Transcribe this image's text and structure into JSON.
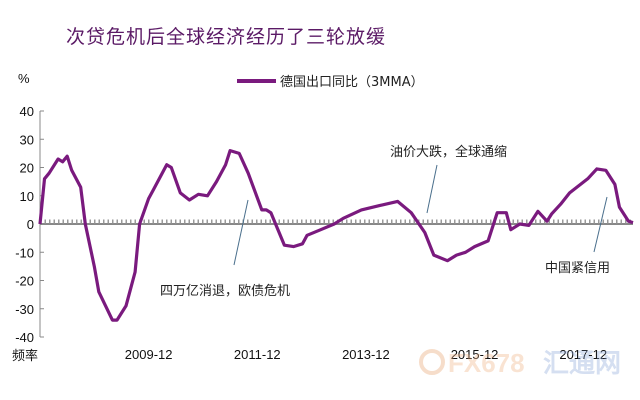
{
  "title": "次贷危机后全球经济经历了三轮放缓",
  "colors": {
    "series": "#7a1a7e",
    "title": "#5b1a66",
    "zero_line": "#888888",
    "annotation_line": "#4a6f8c"
  },
  "watermark": "FX678 汇通网",
  "chart_data": {
    "type": "line",
    "title": "次贷危机后全球经济经历了三轮放缓",
    "ylabel": "%",
    "xlabel": "频率",
    "ylim": [
      -40,
      40
    ],
    "yticks": [
      40,
      30,
      20,
      10,
      0,
      -10,
      -20,
      -30,
      -40
    ],
    "xlim": [
      "2007-12",
      "2018-11"
    ],
    "xticks": [
      "2009-12",
      "2011-12",
      "2013-12",
      "2015-12",
      "2017-12"
    ],
    "legend": {
      "position": "top-center",
      "entries": [
        "德国出口同比（3MMA）"
      ]
    },
    "grid": false,
    "series": [
      {
        "name": "德国出口同比（3MMA）",
        "x": [
          "2007-12",
          "2008-01",
          "2008-02",
          "2008-04",
          "2008-05",
          "2008-06",
          "2008-07",
          "2008-09",
          "2008-10",
          "2008-12",
          "2009-01",
          "2009-04",
          "2009-05",
          "2009-07",
          "2009-09",
          "2009-10",
          "2009-12",
          "2010-01",
          "2010-04",
          "2010-05",
          "2010-07",
          "2010-09",
          "2010-11",
          "2011-01",
          "2011-03",
          "2011-05",
          "2011-06",
          "2011-08",
          "2011-10",
          "2012-01",
          "2012-02",
          "2012-03",
          "2012-06",
          "2012-08",
          "2012-10",
          "2012-11",
          "2013-02",
          "2013-05",
          "2013-07",
          "2013-11",
          "2014-03",
          "2014-07",
          "2014-10",
          "2015-01",
          "2015-03",
          "2015-06",
          "2015-08",
          "2015-10",
          "2015-12",
          "2016-03",
          "2016-05",
          "2016-07",
          "2016-08",
          "2016-10",
          "2016-12",
          "2017-02",
          "2017-04",
          "2017-05",
          "2017-07",
          "2017-09",
          "2018-01",
          "2018-03",
          "2018-05",
          "2018-07",
          "2018-08",
          "2018-10",
          "2018-11"
        ],
        "values": [
          0,
          16,
          18,
          23,
          22,
          24,
          19,
          13,
          0,
          -15,
          -24,
          -34,
          -34,
          -29,
          -17,
          0,
          9,
          12,
          21,
          20,
          11,
          8.5,
          10.5,
          10,
          15,
          21,
          26,
          25,
          18,
          5,
          5,
          4,
          -7.5,
          -8,
          -7,
          -4,
          -2,
          0,
          2,
          5,
          6.5,
          8,
          4,
          -3,
          -11,
          -13,
          -11,
          -10,
          -8,
          -6,
          4,
          4,
          -2,
          0,
          -0.5,
          4.5,
          1,
          3.5,
          7,
          11,
          16,
          19.5,
          19,
          14,
          6,
          1,
          0.5
        ]
      }
    ],
    "annotations": [
      {
        "text": "四万亿消退，欧债危机",
        "date": "2011-10"
      },
      {
        "text": "油价大跌，全球通缩",
        "date": "2014-11"
      },
      {
        "text": "中国紧信用",
        "date": "2018-04"
      }
    ]
  }
}
